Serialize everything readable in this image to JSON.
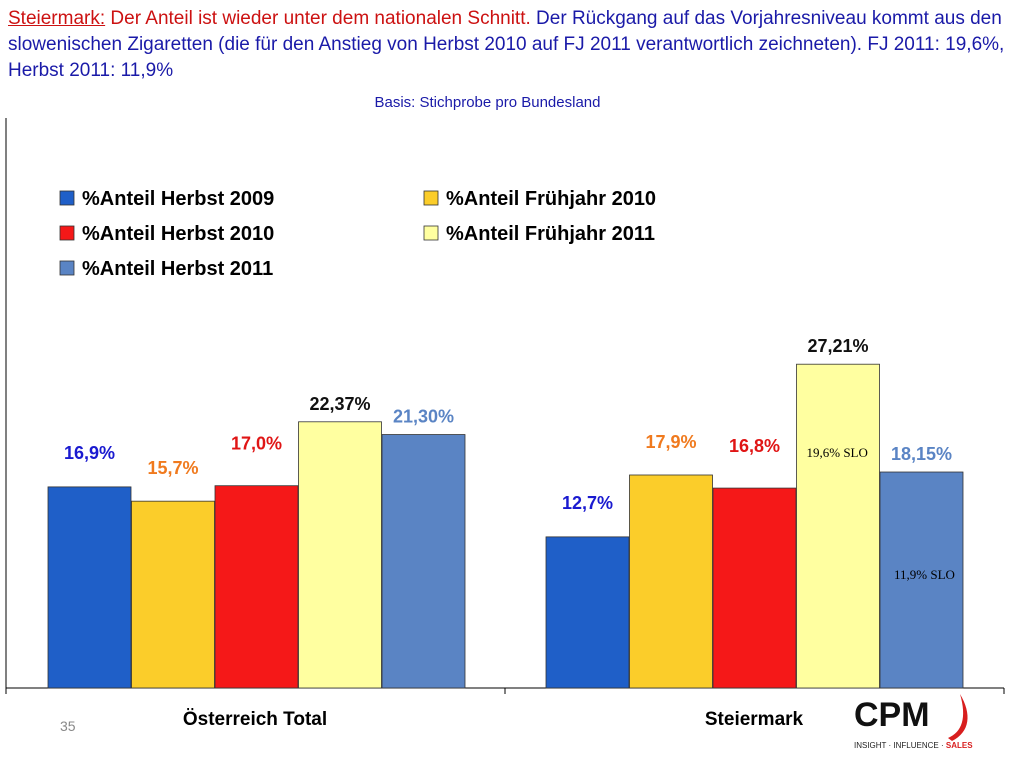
{
  "headline": {
    "region_label": "Steiermark:",
    "statement": " Der Anteil ist wieder unter dem nationalen Schnitt.",
    "detail": " Der Rückgang auf das Vorjahresniveau kommt aus den slowenischen Zigaretten (die für den Anstieg von Herbst 2010 auf FJ 2011 verantwortlich zeichneten). FJ 2011: 19,6%, Herbst 2011: 11,9%"
  },
  "basis": "Basis: Stichprobe pro Bundesland",
  "slide_number": "35",
  "logo": {
    "name": "CPM",
    "tagline_part1": "INSIGHT · INFLUENCE · ",
    "tagline_part2": "SALES",
    "colors": {
      "name": "#111111",
      "swoosh": "#d81e1e",
      "tagline": "#222222",
      "tagline_accent": "#d81e1e"
    }
  },
  "chart_data": {
    "type": "bar",
    "categories": [
      "Österreich Total",
      "Steiermark"
    ],
    "series": [
      {
        "name": "%Anteil Herbst 2009",
        "values": [
          16.9,
          12.7
        ],
        "labels": [
          "16,9%",
          "12,7%"
        ],
        "color": "#1f5fc8",
        "label_color": "#1a1ad0"
      },
      {
        "name": "%Anteil Frühjahr 2010",
        "values": [
          15.7,
          17.9
        ],
        "labels": [
          "15,7%",
          "17,9%"
        ],
        "color": "#fbcd2a",
        "label_color": "#f07a1e"
      },
      {
        "name": "%Anteil Herbst 2010",
        "values": [
          17.0,
          16.8
        ],
        "labels": [
          "17,0%",
          "16,8%"
        ],
        "color": "#f51818",
        "label_color": "#e01515"
      },
      {
        "name": "%Anteil Frühjahr 2011",
        "values": [
          22.37,
          27.21
        ],
        "labels": [
          "22,37%",
          "27,21%"
        ],
        "color": "#ffffa0",
        "label_color": "#111111"
      },
      {
        "name": "%Anteil Herbst 2011",
        "values": [
          21.3,
          18.15
        ],
        "labels": [
          "21,30%",
          "18,15%"
        ],
        "color": "#5a84c4",
        "label_color": "#5a84c4"
      }
    ],
    "annotations": [
      {
        "text": "19,6% SLO",
        "series": 3,
        "category": 1
      },
      {
        "text": "11,9% SLO",
        "series": 4,
        "category": 1
      }
    ],
    "ylim": [
      0,
      30
    ],
    "grid": false,
    "legend": "top-left"
  }
}
